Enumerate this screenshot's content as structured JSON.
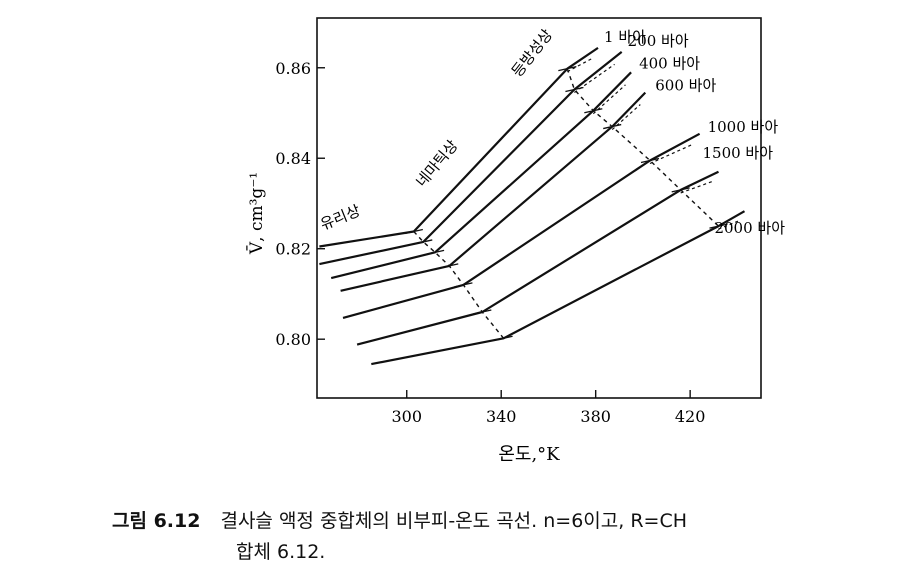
{
  "chart_data": {
    "type": "line",
    "xlabel": "온도,°K",
    "ylabel": "V̄, cm³g⁻¹",
    "xlim": [
      262,
      450
    ],
    "ylim": [
      0.787,
      0.871
    ],
    "x_ticks": [
      300,
      340,
      380,
      420
    ],
    "x_tick_labels": [
      "300",
      "340",
      "380",
      "420"
    ],
    "y_ticks": [
      0.8,
      0.82,
      0.84,
      0.86
    ],
    "y_tick_labels": [
      "0.80",
      "0.82",
      "0.84",
      "0.86"
    ],
    "phase_labels": [
      "유리상",
      "네마틱상",
      "등방성상"
    ],
    "series": [
      {
        "name": "1 바아",
        "points": [
          [
            263,
            0.8205
          ],
          [
            303,
            0.8238
          ],
          [
            368,
            0.8598
          ],
          [
            381,
            0.8644
          ]
        ]
      },
      {
        "name": "200 바아",
        "points": [
          [
            263,
            0.8166
          ],
          [
            307,
            0.8215
          ],
          [
            371,
            0.8552
          ],
          [
            391,
            0.8635
          ]
        ]
      },
      {
        "name": "400 바아",
        "points": [
          [
            268,
            0.8135
          ],
          [
            312,
            0.8192
          ],
          [
            379,
            0.8505
          ],
          [
            395,
            0.859
          ]
        ]
      },
      {
        "name": "600 바아",
        "points": [
          [
            272,
            0.8107
          ],
          [
            318,
            0.8162
          ],
          [
            387,
            0.847
          ],
          [
            401,
            0.8545
          ]
        ]
      },
      {
        "name": "1000 바아",
        "points": [
          [
            273,
            0.8047
          ],
          [
            324,
            0.812
          ],
          [
            403,
            0.8395
          ],
          [
            424,
            0.8454
          ]
        ]
      },
      {
        "name": "1500 바아",
        "points": [
          [
            279,
            0.7988
          ],
          [
            332,
            0.806
          ],
          [
            416,
            0.833
          ],
          [
            432,
            0.837
          ]
        ]
      },
      {
        "name": "2000 바아",
        "points": [
          [
            285,
            0.7945
          ],
          [
            341,
            0.8002
          ],
          [
            432,
            0.825
          ],
          [
            443,
            0.8283
          ]
        ]
      }
    ],
    "transitions": {
      "glass": [
        [
          303,
          0.8238
        ],
        [
          307,
          0.8215
        ],
        [
          312,
          0.8192
        ],
        [
          318,
          0.8162
        ],
        [
          324,
          0.812
        ],
        [
          332,
          0.806
        ],
        [
          341,
          0.8002
        ]
      ],
      "isotropic": [
        [
          368,
          0.8598
        ],
        [
          371,
          0.8552
        ],
        [
          379,
          0.8505
        ],
        [
          387,
          0.847
        ],
        [
          403,
          0.8395
        ],
        [
          416,
          0.833
        ],
        [
          432,
          0.825
        ]
      ]
    }
  },
  "caption": {
    "figure": "그림 6.12",
    "line1": "결사슬 액정 중합체의 비부피-온도 곡선. n=6이고, R=CH",
    "line2": "합체 6.12."
  }
}
